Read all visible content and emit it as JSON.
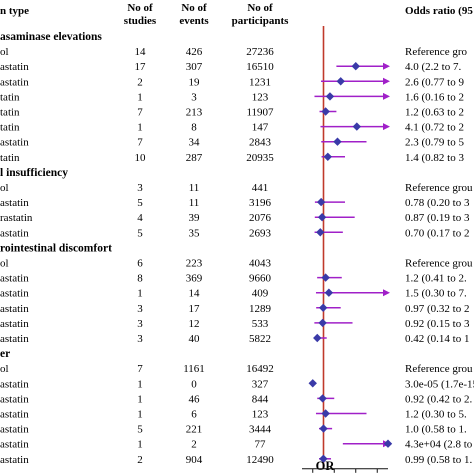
{
  "table_headers": {
    "type": "n type",
    "studies_1": "No of",
    "studies_2": "studies",
    "events_1": "No of",
    "events_2": "events",
    "participants_1": "No of",
    "participants_2": "participants",
    "or": "Odds ratio (95%"
  },
  "colors": {
    "marker": "#3a3aa8",
    "ci": "#a020c8",
    "ref_line": "#c0392b",
    "text": "#111111"
  },
  "chart_data": {
    "type": "forest",
    "xlabel": "OR",
    "ticks": [
      0,
      2,
      4,
      6
    ],
    "xlim": [
      -1,
      7
    ],
    "reference_value": 1,
    "rows": [
      {
        "kind": "section",
        "label": "asaminase elevations"
      },
      {
        "kind": "data",
        "label": "ol",
        "studies": "14",
        "events": "426",
        "participants": "27236",
        "or_text": "Reference gro",
        "est": null,
        "lo": null,
        "hi": null,
        "arrow": false
      },
      {
        "kind": "data",
        "label": "astatin",
        "studies": "17",
        "events": "307",
        "participants": "16510",
        "or_text": "4.0 (2.2 to 7.",
        "est": 4.0,
        "lo": 2.2,
        "hi": 7.0,
        "arrow": true
      },
      {
        "kind": "data",
        "label": "astatin",
        "studies": "2",
        "events": "19",
        "participants": "1231",
        "or_text": "2.6 (0.77 to 9",
        "est": 2.6,
        "lo": 0.77,
        "hi": 9.0,
        "arrow": true
      },
      {
        "kind": "data",
        "label": "tatin",
        "studies": "1",
        "events": "3",
        "participants": "123",
        "or_text": "1.6 (0.16 to 2",
        "est": 1.6,
        "lo": 0.16,
        "hi": 20,
        "arrow": true
      },
      {
        "kind": "data",
        "label": "tatin",
        "studies": "7",
        "events": "213",
        "participants": "11907",
        "or_text": "1.2 (0.63 to 2",
        "est": 1.2,
        "lo": 0.63,
        "hi": 2.2,
        "arrow": false
      },
      {
        "kind": "data",
        "label": "tatin",
        "studies": "1",
        "events": "8",
        "participants": "147",
        "or_text": "4.1 (0.72 to 2",
        "est": 4.1,
        "lo": 0.72,
        "hi": 20,
        "arrow": true
      },
      {
        "kind": "data",
        "label": "astatin",
        "studies": "7",
        "events": "34",
        "participants": "2843",
        "or_text": "2.3 (0.79 to 5",
        "est": 2.3,
        "lo": 0.79,
        "hi": 5.0,
        "arrow": false
      },
      {
        "kind": "data",
        "label": "tatin",
        "studies": "10",
        "events": "287",
        "participants": "20935",
        "or_text": "1.4 (0.82 to 3",
        "est": 1.4,
        "lo": 0.82,
        "hi": 3.0,
        "arrow": false
      },
      {
        "kind": "section",
        "label": "l insufficiency"
      },
      {
        "kind": "data",
        "label": "ol",
        "studies": "3",
        "events": "11",
        "participants": "441",
        "or_text": "Reference grou",
        "est": null,
        "lo": null,
        "hi": null,
        "arrow": false
      },
      {
        "kind": "data",
        "label": "astatin",
        "studies": "5",
        "events": "11",
        "participants": "3196",
        "or_text": "0.78 (0.20 to 3",
        "est": 0.78,
        "lo": 0.2,
        "hi": 3.0,
        "arrow": false
      },
      {
        "kind": "data",
        "label": "rastatin",
        "studies": "4",
        "events": "39",
        "participants": "2076",
        "or_text": "0.87 (0.19 to 3",
        "est": 0.87,
        "lo": 0.19,
        "hi": 3.9,
        "arrow": false
      },
      {
        "kind": "data",
        "label": "astatin",
        "studies": "5",
        "events": "35",
        "participants": "2693",
        "or_text": "0.70 (0.17 to 2",
        "est": 0.7,
        "lo": 0.17,
        "hi": 2.8,
        "arrow": false
      },
      {
        "kind": "section",
        "label": "rointestinal discomfort"
      },
      {
        "kind": "data",
        "label": "ol",
        "studies": "6",
        "events": "223",
        "participants": "4043",
        "or_text": "Reference grou",
        "est": null,
        "lo": null,
        "hi": null,
        "arrow": false
      },
      {
        "kind": "data",
        "label": "astatin",
        "studies": "8",
        "events": "369",
        "participants": "9660",
        "or_text": "1.2 (0.41 to 2.",
        "est": 1.2,
        "lo": 0.41,
        "hi": 2.7,
        "arrow": false
      },
      {
        "kind": "data",
        "label": "astatin",
        "studies": "1",
        "events": "14",
        "participants": "409",
        "or_text": "1.5 (0.30 to 7.",
        "est": 1.5,
        "lo": 0.3,
        "hi": 7.0,
        "arrow": true
      },
      {
        "kind": "data",
        "label": "astatin",
        "studies": "3",
        "events": "17",
        "participants": "1289",
        "or_text": "0.97 (0.32 to 2",
        "est": 0.97,
        "lo": 0.32,
        "hi": 2.6,
        "arrow": false
      },
      {
        "kind": "data",
        "label": "astatin",
        "studies": "3",
        "events": "12",
        "participants": "533",
        "or_text": "0.92 (0.15 to 3",
        "est": 0.92,
        "lo": 0.15,
        "hi": 3.7,
        "arrow": false
      },
      {
        "kind": "data",
        "label": "astatin",
        "studies": "3",
        "events": "40",
        "participants": "5822",
        "or_text": "0.42 (0.14 to 1",
        "est": 0.42,
        "lo": 0.14,
        "hi": 1.3,
        "arrow": false
      },
      {
        "kind": "section",
        "label": "er"
      },
      {
        "kind": "data",
        "label": "ol",
        "studies": "7",
        "events": "1161",
        "participants": "16492",
        "or_text": "Reference grou",
        "est": null,
        "lo": null,
        "hi": null,
        "arrow": false
      },
      {
        "kind": "data",
        "label": "astatin",
        "studies": "1",
        "events": "0",
        "participants": "327",
        "or_text": "3.0e-05 (1.7e-15 to",
        "est": 3e-05,
        "lo": 1.7e-15,
        "hi": 0.1,
        "arrow": false
      },
      {
        "kind": "data",
        "label": "astatin",
        "studies": "1",
        "events": "46",
        "participants": "844",
        "or_text": "0.92 (0.42 to 2.",
        "est": 0.92,
        "lo": 0.42,
        "hi": 2.0,
        "arrow": false
      },
      {
        "kind": "data",
        "label": "astatin",
        "studies": "1",
        "events": "6",
        "participants": "123",
        "or_text": "1.2 (0.30 to 5.",
        "est": 1.2,
        "lo": 0.3,
        "hi": 5.0,
        "arrow": false
      },
      {
        "kind": "data",
        "label": "astatin",
        "studies": "5",
        "events": "221",
        "participants": "3444",
        "or_text": "1.0 (0.58 to 1.",
        "est": 1.0,
        "lo": 0.58,
        "hi": 1.8,
        "arrow": false
      },
      {
        "kind": "data",
        "label": "astatin",
        "studies": "1",
        "events": "2",
        "participants": "77",
        "or_text": "4.3e+04 (2.8 to 8.7",
        "est": 43000,
        "lo": 2.8,
        "hi": 87000,
        "arrow": true
      },
      {
        "kind": "data",
        "label": "astatin",
        "studies": "2",
        "events": "904",
        "participants": "12490",
        "or_text": "0.99 (0.58 to 1.",
        "est": 0.99,
        "lo": 0.58,
        "hi": 1.7,
        "arrow": false
      }
    ]
  }
}
